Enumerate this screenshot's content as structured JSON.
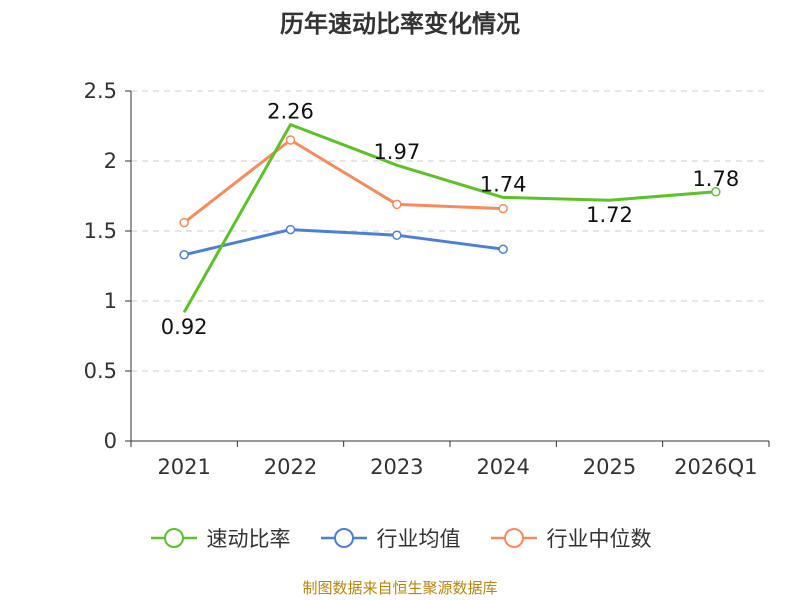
{
  "title": "历年速动比率变化情况",
  "source": "制图数据来自恒生聚源数据库",
  "source_color": "#b8860b",
  "chart_data": {
    "type": "line",
    "title": "历年速动比率变化情况",
    "categories": [
      "2021",
      "2022",
      "2023",
      "2024",
      "2025",
      "2026Q1"
    ],
    "ylim": [
      0,
      2.5
    ],
    "yticks": [
      "0",
      "0.5",
      "1",
      "1.5",
      "2",
      "2.5"
    ],
    "ytick_values": [
      0,
      0.5,
      1,
      1.5,
      2,
      2.5
    ],
    "grid": true,
    "legend_position": "bottom",
    "series": [
      {
        "name": "速动比率",
        "color": "#5cc227",
        "values": [
          0.92,
          2.26,
          1.97,
          1.74,
          1.72,
          1.78
        ],
        "data_labels": [
          "0.92",
          "2.26",
          "1.97",
          "1.74",
          "1.72",
          "1.78"
        ],
        "label_positions": [
          "below",
          "above",
          "above",
          "above",
          "below",
          "above"
        ],
        "markers": [
          false,
          false,
          false,
          false,
          false,
          true
        ]
      },
      {
        "name": "行业均值",
        "color": "#4e7fd6",
        "values": [
          1.33,
          1.51,
          1.47,
          1.37,
          null,
          null
        ],
        "markers": [
          true,
          true,
          true,
          true,
          false,
          false
        ]
      },
      {
        "name": "行业中位数",
        "color": "#f78b5b",
        "values": [
          1.56,
          2.15,
          1.69,
          1.66,
          null,
          null
        ],
        "markers": [
          true,
          true,
          true,
          true,
          false,
          false
        ]
      }
    ]
  }
}
